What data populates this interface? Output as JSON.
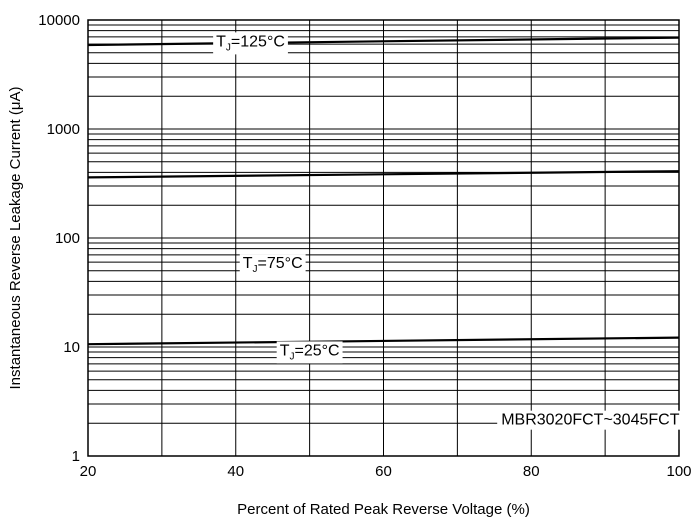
{
  "chart_data": {
    "type": "line",
    "title": "",
    "xlabel": "Percent of Rated Peak Reverse Voltage (%)",
    "ylabel": "Instantaneous Reverse Leakage Current (μA)",
    "xlim": [
      20,
      100
    ],
    "ylim": [
      1,
      10000
    ],
    "yscale": "log",
    "grid": true,
    "x_ticks": [
      20,
      40,
      60,
      80,
      100
    ],
    "y_ticks": [
      1,
      10,
      100,
      1000,
      10000
    ],
    "x_tick_labels": [
      "20",
      "40",
      "60",
      "80",
      "100"
    ],
    "y_tick_labels": [
      "1",
      "10",
      "100",
      "1000",
      "10000"
    ],
    "series": [
      {
        "name": "T_J=125°C",
        "label_main": "T",
        "label_sub": "J",
        "label_rest": "=125°C",
        "x": [
          20,
          100
        ],
        "values": [
          5900,
          6900
        ],
        "label_at": [
          42,
          6500
        ]
      },
      {
        "name": "T_J=75°C",
        "label_main": "T",
        "label_sub": "J",
        "label_rest": "=75°C",
        "x": [
          20,
          100
        ],
        "values": [
          360,
          410
        ],
        "label_at": [
          45,
          60
        ]
      },
      {
        "name": "T_J=25°C",
        "label_main": "T",
        "label_sub": "J",
        "label_rest": "=25°C",
        "x": [
          20,
          100
        ],
        "values": [
          10.6,
          12.2
        ],
        "label_at": [
          50,
          9.5
        ]
      }
    ],
    "annotation": "MBR3020FCT~3045FCT",
    "annotation_at": [
      88,
      2.2
    ]
  }
}
